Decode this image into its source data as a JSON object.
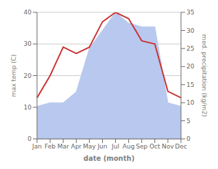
{
  "chart_data": {
    "type": "line",
    "categories": [
      "Jan",
      "Feb",
      "Mar",
      "Apr",
      "May",
      "Jun",
      "Jul",
      "Aug",
      "Sep",
      "Oct",
      "Nov",
      "Dec"
    ],
    "series": [
      {
        "type": "area",
        "axis": "y2",
        "color": "#b8c8ee",
        "values": [
          9,
          10,
          10,
          13,
          25,
          30,
          35,
          32,
          31,
          31,
          10,
          9
        ]
      },
      {
        "type": "line",
        "color": "#cc3333",
        "values": [
          13,
          20,
          29,
          27,
          29,
          37,
          40,
          38,
          31,
          30,
          15,
          13
        ]
      }
    ],
    "xlabel": "date (month)",
    "ylabel": "max temp (C)",
    "y2label": "med. precipitation (kg/m2)",
    "ylim": [
      0,
      40
    ],
    "yticks": [
      0,
      10,
      20,
      30,
      40
    ],
    "y2lim": [
      0,
      35
    ],
    "y2ticks": [
      0,
      5,
      10,
      15,
      20,
      25,
      30,
      35
    ],
    "grid": true
  }
}
